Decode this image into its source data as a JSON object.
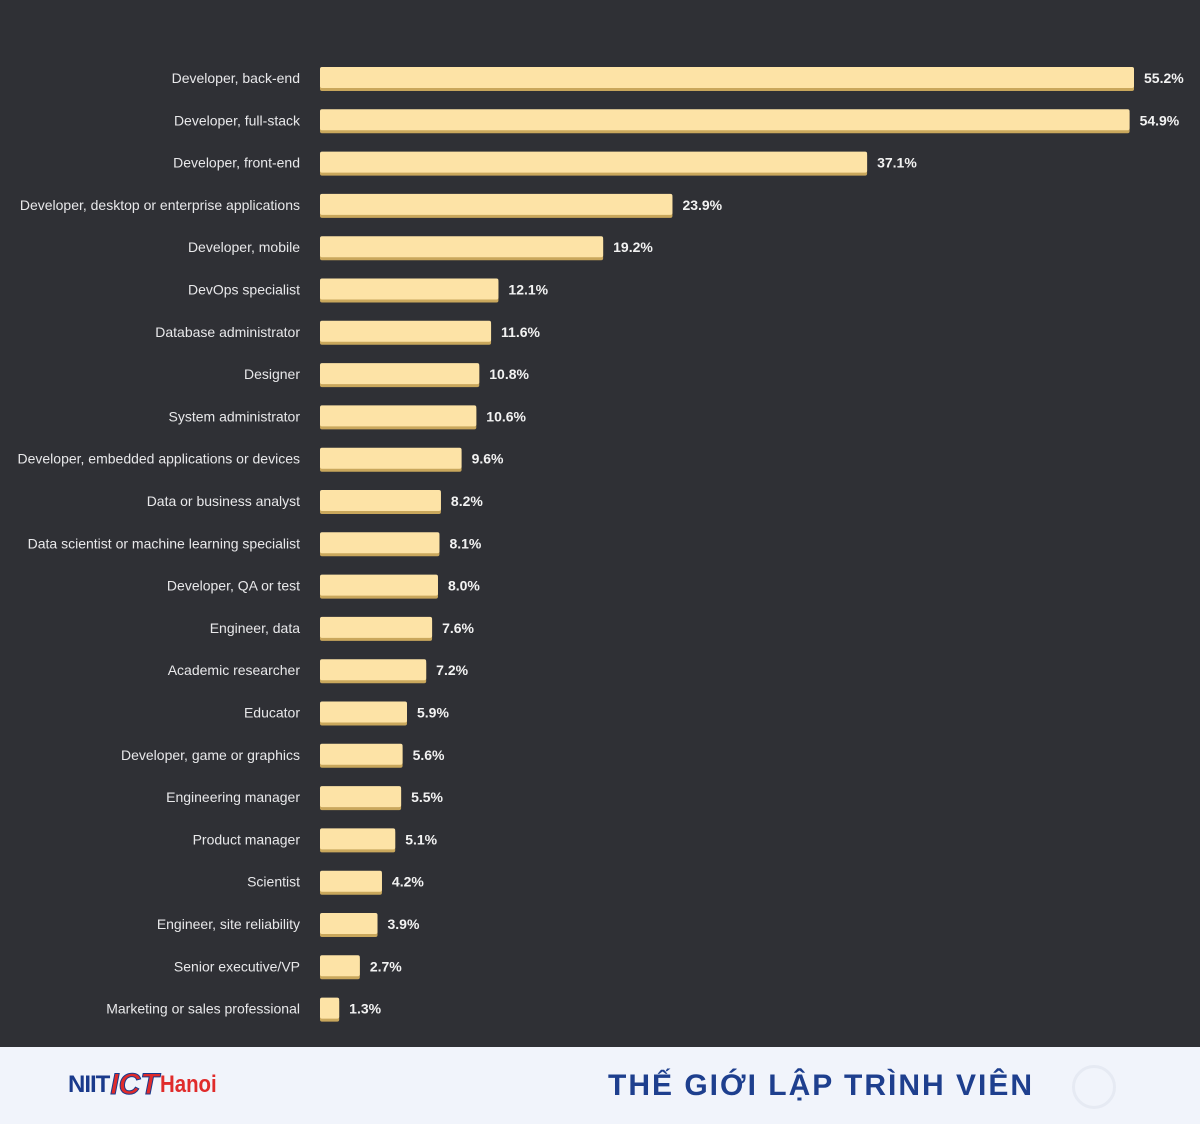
{
  "chart_data": {
    "type": "bar",
    "orientation": "horizontal",
    "title": "",
    "xlabel": "",
    "ylabel": "",
    "value_suffix": "%",
    "xlim": [
      0,
      55.2
    ],
    "grid": false,
    "bar_color": "#fde3a6",
    "categories": [
      "Developer, back-end",
      "Developer, full-stack",
      "Developer, front-end",
      "Developer, desktop or enterprise applications",
      "Developer, mobile",
      "DevOps specialist",
      "Database administrator",
      "Designer",
      "System administrator",
      "Developer, embedded applications or devices",
      "Data or business analyst",
      "Data scientist or machine learning specialist",
      "Developer, QA or test",
      "Engineer, data",
      "Academic researcher",
      "Educator",
      "Developer, game or graphics",
      "Engineering manager",
      "Product manager",
      "Scientist",
      "Engineer, site reliability",
      "Senior executive/VP",
      "Marketing or sales professional"
    ],
    "values": [
      55.2,
      54.9,
      37.1,
      23.9,
      19.2,
      12.1,
      11.6,
      10.8,
      10.6,
      9.6,
      8.2,
      8.1,
      8.0,
      7.6,
      7.2,
      5.9,
      5.6,
      5.5,
      5.1,
      4.2,
      3.9,
      2.7,
      1.3
    ],
    "value_labels": [
      "55.2%",
      "54.9%",
      "37.1%",
      "23.9%",
      "19.2%",
      "12.1%",
      "11.6%",
      "10.8%",
      "10.6%",
      "9.6%",
      "8.2%",
      "8.1%",
      "8.0%",
      "7.6%",
      "7.2%",
      "5.9%",
      "5.6%",
      "5.5%",
      "5.1%",
      "4.2%",
      "3.9%",
      "2.7%",
      "1.3%"
    ]
  },
  "footer": {
    "logo_niit": "NIIT",
    "logo_ict": "ICT",
    "logo_hanoi": "Hanoi",
    "tagline": "THẾ GIỚI LẬP TRÌNH VIÊN"
  },
  "colors": {
    "background": "#2f3035",
    "footer_background": "#f1f4fb",
    "tagline": "#1e3f8e",
    "logo_red": "#e02b2b",
    "logo_blue": "#1a3a8c"
  }
}
